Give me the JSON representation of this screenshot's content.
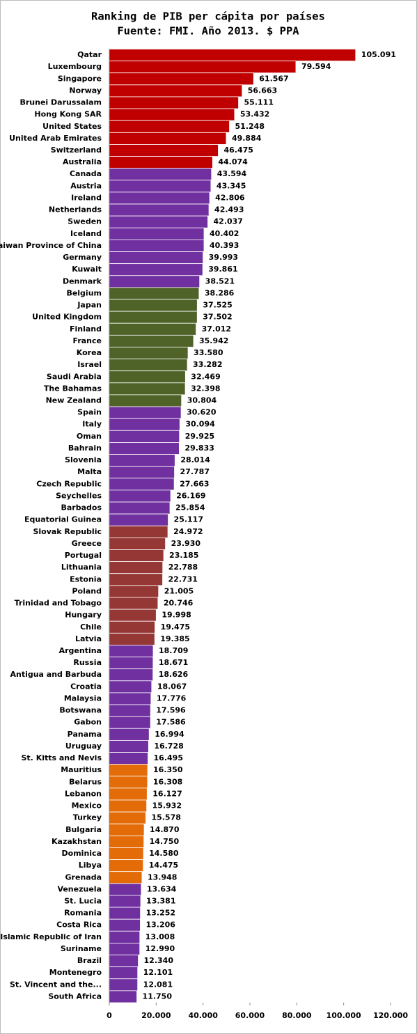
{
  "chart_data": {
    "type": "hbar",
    "title": [
      "Ranking de PIB per cápita por países",
      "Fuente: FMI. Año 2013. $ PPA"
    ],
    "categories": [
      "Qatar",
      "Luxembourg",
      "Singapore",
      "Norway",
      "Brunei Darussalam",
      "Hong Kong SAR",
      "United States",
      "United Arab Emirates",
      "Switzerland",
      "Australia",
      "Canada",
      "Austria",
      "Ireland",
      "Netherlands",
      "Sweden",
      "Iceland",
      "Taiwan Province of China",
      "Germany",
      "Kuwait",
      "Denmark",
      "Belgium",
      "Japan",
      "United Kingdom",
      "Finland",
      "France",
      "Korea",
      "Israel",
      "Saudi Arabia",
      "The Bahamas",
      "New Zealand",
      "Spain",
      "Italy",
      "Oman",
      "Bahrain",
      "Slovenia",
      "Malta",
      "Czech Republic",
      "Seychelles",
      "Barbados",
      "Equatorial Guinea",
      "Slovak Republic",
      "Greece",
      "Portugal",
      "Lithuania",
      "Estonia",
      "Poland",
      "Trinidad and Tobago",
      "Hungary",
      "Chile",
      "Latvia",
      "Argentina",
      "Russia",
      "Antigua and Barbuda",
      "Croatia",
      "Malaysia",
      "Botswana",
      "Gabon",
      "Panama",
      "Uruguay",
      "St. Kitts and Nevis",
      "Mauritius",
      "Belarus",
      "Lebanon",
      "Mexico",
      "Turkey",
      "Bulgaria",
      "Kazakhstan",
      "Dominica",
      "Libya",
      "Grenada",
      "Venezuela",
      "St. Lucia",
      "Romania",
      "Costa Rica",
      "Islamic Republic of Iran",
      "Suriname",
      "Brazil",
      "Montenegro",
      "St. Vincent and the...",
      "South Africa"
    ],
    "values": [
      105091,
      79594,
      61567,
      56663,
      55111,
      53432,
      51248,
      49884,
      46475,
      44074,
      43594,
      43345,
      42806,
      42493,
      42037,
      40402,
      40393,
      39993,
      39861,
      38521,
      38286,
      37525,
      37502,
      37012,
      35942,
      33580,
      33282,
      32469,
      32398,
      30804,
      30620,
      30094,
      29925,
      29833,
      28014,
      27787,
      27663,
      26169,
      25854,
      25117,
      24972,
      23930,
      23185,
      22788,
      22731,
      21005,
      20746,
      19998,
      19475,
      19385,
      18709,
      18671,
      18626,
      18067,
      17776,
      17596,
      17586,
      16994,
      16728,
      16495,
      16350,
      16308,
      16127,
      15932,
      15578,
      14870,
      14750,
      14580,
      14475,
      13948,
      13634,
      13381,
      13252,
      13206,
      13008,
      12990,
      12340,
      12101,
      12081,
      11750
    ],
    "value_labels": [
      "105.091",
      "79.594",
      "61.567",
      "56.663",
      "55.111",
      "53.432",
      "51.248",
      "49.884",
      "46.475",
      "44.074",
      "43.594",
      "43.345",
      "42.806",
      "42.493",
      "42.037",
      "40.402",
      "40.393",
      "39.993",
      "39.861",
      "38.521",
      "38.286",
      "37.525",
      "37.502",
      "37.012",
      "35.942",
      "33.580",
      "33.282",
      "32.469",
      "32.398",
      "30.804",
      "30.620",
      "30.094",
      "29.925",
      "29.833",
      "28.014",
      "27.787",
      "27.663",
      "26.169",
      "25.854",
      "25.117",
      "24.972",
      "23.930",
      "23.185",
      "22.788",
      "22.731",
      "21.005",
      "20.746",
      "19.998",
      "19.475",
      "19.385",
      "18.709",
      "18.671",
      "18.626",
      "18.067",
      "17.776",
      "17.596",
      "17.586",
      "16.994",
      "16.728",
      "16.495",
      "16.350",
      "16.308",
      "16.127",
      "15.932",
      "15.578",
      "14.870",
      "14.750",
      "14.580",
      "14.475",
      "13.948",
      "13.634",
      "13.381",
      "13.252",
      "13.206",
      "13.008",
      "12.990",
      "12.340",
      "12.101",
      "12.081",
      "11.750"
    ],
    "colors": [
      "#c00000",
      "#c00000",
      "#c00000",
      "#c00000",
      "#c00000",
      "#c00000",
      "#c00000",
      "#c00000",
      "#c00000",
      "#c00000",
      "#7030a0",
      "#7030a0",
      "#7030a0",
      "#7030a0",
      "#7030a0",
      "#7030a0",
      "#7030a0",
      "#7030a0",
      "#7030a0",
      "#7030a0",
      "#4f6228",
      "#4f6228",
      "#4f6228",
      "#4f6228",
      "#4f6228",
      "#4f6228",
      "#4f6228",
      "#4f6228",
      "#4f6228",
      "#4f6228",
      "#7030a0",
      "#7030a0",
      "#7030a0",
      "#7030a0",
      "#7030a0",
      "#7030a0",
      "#7030a0",
      "#7030a0",
      "#7030a0",
      "#7030a0",
      "#953735",
      "#953735",
      "#953735",
      "#953735",
      "#953735",
      "#953735",
      "#953735",
      "#953735",
      "#953735",
      "#953735",
      "#7030a0",
      "#7030a0",
      "#7030a0",
      "#7030a0",
      "#7030a0",
      "#7030a0",
      "#7030a0",
      "#7030a0",
      "#7030a0",
      "#7030a0",
      "#e36c09",
      "#e36c09",
      "#e36c09",
      "#e36c09",
      "#e36c09",
      "#e36c09",
      "#e36c09",
      "#e36c09",
      "#e36c09",
      "#e36c09",
      "#7030a0",
      "#7030a0",
      "#7030a0",
      "#7030a0",
      "#7030a0",
      "#7030a0",
      "#7030a0",
      "#7030a0",
      "#7030a0",
      "#7030a0"
    ],
    "xlim": [
      0,
      120000
    ],
    "xticks": [
      0,
      {
        "value": 20000,
        "label": "20.000"
      },
      {
        "value": 40000,
        "label": "40.000"
      },
      {
        "value": 60000,
        "label": "60.000"
      },
      {
        "value": 80000,
        "label": "80.000"
      },
      {
        "value": 100000,
        "label": "100.000"
      },
      {
        "value": 120000,
        "label": "120.000"
      }
    ],
    "grid": false
  }
}
